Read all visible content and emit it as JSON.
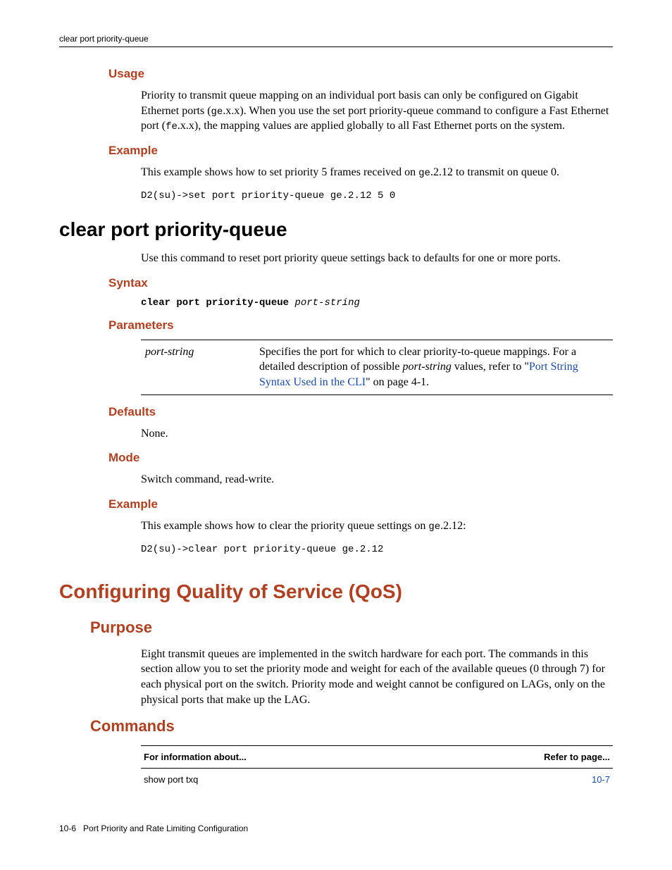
{
  "header": {
    "breadcrumb": "clear port priority-queue"
  },
  "sec_usage": {
    "title": "Usage",
    "para_parts": [
      "Priority to transmit queue mapping on an individual port basis can only be configured on Gigabit Ethernet ports (",
      "ge",
      ".x.x). When you use the set port priority-queue command to configure a Fast Ethernet port (",
      "fe",
      ".x.x), the mapping values are applied globally to all Fast Ethernet ports on the system."
    ]
  },
  "sec_example1": {
    "title": "Example",
    "intro_parts": [
      "This example shows how to set priority 5 frames received on ",
      "ge",
      ".2.12 to transmit on queue 0."
    ],
    "code": "D2(su)->set port priority-queue ge.2.12 5 0"
  },
  "cmd_clear": {
    "heading": "clear port priority-queue",
    "intro": "Use this command to reset port priority queue settings back to defaults for one or more ports."
  },
  "sec_syntax": {
    "title": "Syntax",
    "bold": "clear port priority-queue",
    "ital": "port-string"
  },
  "sec_params": {
    "title": "Parameters",
    "row": {
      "name": "port-string",
      "desc_parts": [
        "Specifies the port for which to clear priority-to-queue mappings. For a detailed description of possible ",
        "port-string",
        " values, refer to \"",
        "Port String Syntax Used in the CLI",
        "\" on page 4-1."
      ]
    }
  },
  "sec_defaults": {
    "title": "Defaults",
    "text": "None."
  },
  "sec_mode": {
    "title": "Mode",
    "text": "Switch command, read-write."
  },
  "sec_example2": {
    "title": "Example",
    "intro_parts": [
      "This example shows how to clear the priority queue settings on ",
      "ge",
      ".2.12:"
    ],
    "code": "D2(su)->clear port priority-queue ge.2.12"
  },
  "qos": {
    "heading": "Configuring Quality of Service (QoS)",
    "purpose_h": "Purpose",
    "purpose_text": "Eight transmit queues are implemented in the switch hardware for each port. The commands in this section allow you to set the priority mode and weight for each of the available queues (0 through 7) for each physical port on the switch. Priority mode and weight cannot be configured on LAGs, only on the physical ports that make up the LAG.",
    "commands_h": "Commands",
    "table": {
      "col1": "For information about...",
      "col2": "Refer to page...",
      "row1_cmd": "show port txq",
      "row1_page": "10-7"
    }
  },
  "footer": {
    "page_num": "10-6",
    "chapter": "Port Priority and Rate Limiting Configuration"
  }
}
